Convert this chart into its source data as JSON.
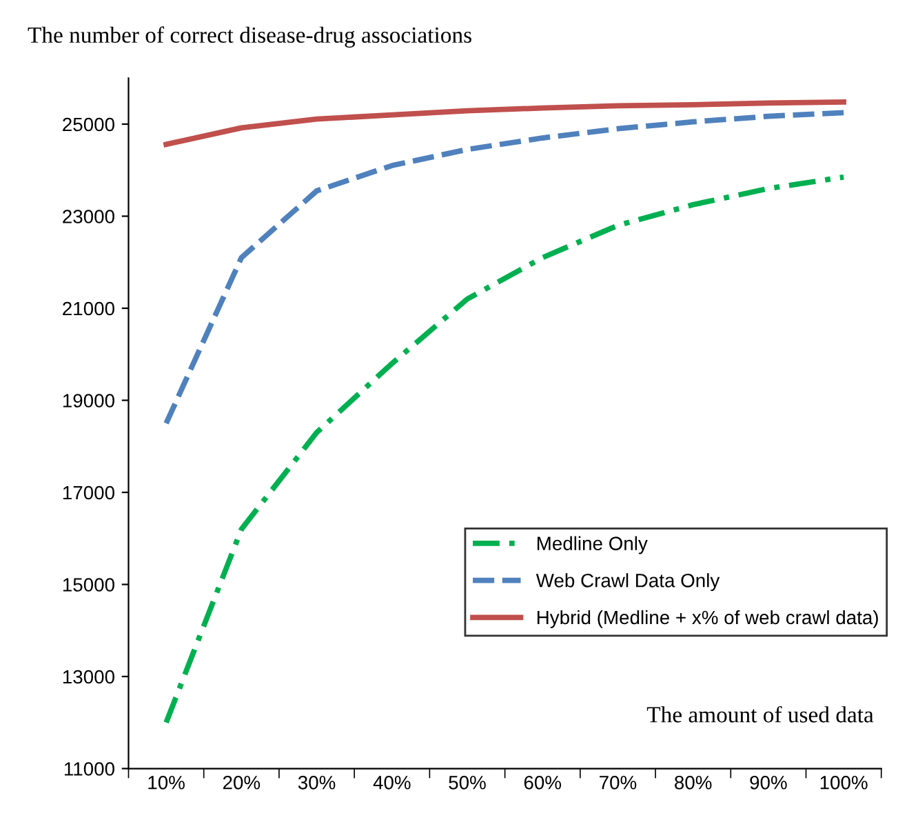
{
  "chart_data": {
    "type": "line",
    "ylabel": "The number of correct disease-drug associations",
    "xlabel": "The amount of used data",
    "categories": [
      "10%",
      "20%",
      "30%",
      "40%",
      "50%",
      "60%",
      "70%",
      "80%",
      "90%",
      "100%"
    ],
    "series": [
      {
        "name": "Medline Only",
        "color": "#00b050",
        "line_style": "dashdot",
        "values": [
          12000,
          16200,
          18300,
          19800,
          21200,
          22100,
          22800,
          23250,
          23600,
          23850
        ]
      },
      {
        "name": "Web Crawl Data Only",
        "color": "#4f81bd",
        "line_style": "dashed",
        "values": [
          18500,
          22100,
          23550,
          24100,
          24450,
          24700,
          24900,
          25050,
          25170,
          25250
        ]
      },
      {
        "name": "Hybrid (Medline + x% of web crawl data)",
        "color": "#c0504d",
        "line_style": "solid",
        "values": [
          24560,
          24920,
          25110,
          25200,
          25290,
          25350,
          25400,
          25420,
          25460,
          25480
        ]
      }
    ],
    "ylim": [
      11000,
      26000
    ],
    "yticks": [
      11000,
      13000,
      15000,
      17000,
      19000,
      21000,
      23000,
      25000
    ],
    "grid": false,
    "legend": "right",
    "marker": "none"
  }
}
